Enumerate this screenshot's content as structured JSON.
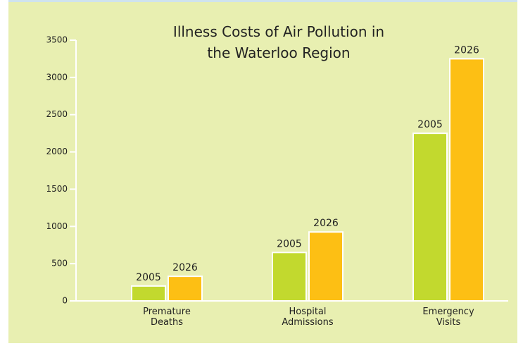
{
  "chart_data": {
    "type": "bar",
    "title": "Illness Costs of Air Pollution in the Waterloo Region",
    "categories": [
      "Premature Deaths",
      "Hospital Admissions",
      "Emergency Visits"
    ],
    "series": [
      {
        "name": "2005",
        "color": "#c2d92e",
        "values": [
          200,
          650,
          2250
        ]
      },
      {
        "name": "2026",
        "color": "#fdbf14",
        "values": [
          330,
          925,
          3250
        ]
      }
    ],
    "ylim": [
      0,
      3500
    ],
    "yticks": [
      0,
      500,
      1000,
      1500,
      2000,
      2500,
      3000,
      3500
    ],
    "grid": false
  }
}
